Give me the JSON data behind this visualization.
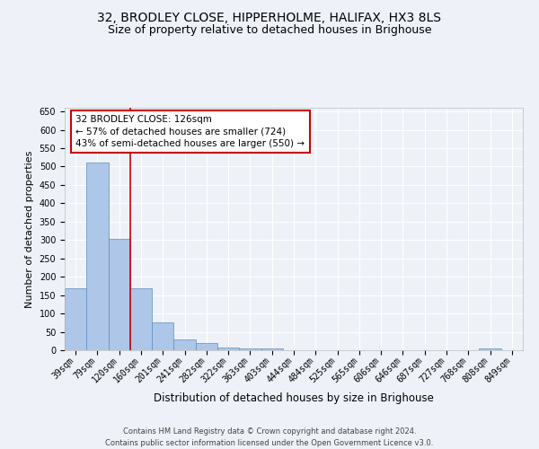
{
  "title1": "32, BRODLEY CLOSE, HIPPERHOLME, HALIFAX, HX3 8LS",
  "title2": "Size of property relative to detached houses in Brighouse",
  "xlabel": "Distribution of detached houses by size in Brighouse",
  "ylabel": "Number of detached properties",
  "categories": [
    "39sqm",
    "79sqm",
    "120sqm",
    "160sqm",
    "201sqm",
    "241sqm",
    "282sqm",
    "322sqm",
    "363sqm",
    "403sqm",
    "444sqm",
    "484sqm",
    "525sqm",
    "565sqm",
    "606sqm",
    "646sqm",
    "687sqm",
    "727sqm",
    "768sqm",
    "808sqm",
    "849sqm"
  ],
  "values": [
    168,
    510,
    303,
    168,
    75,
    30,
    20,
    7,
    5,
    5,
    0,
    0,
    0,
    0,
    0,
    0,
    0,
    0,
    0,
    5,
    0
  ],
  "bar_color": "#aec6e8",
  "bar_edge_color": "#5a8fc0",
  "vline_x_index": 2.5,
  "vline_color": "#cc0000",
  "annotation_text": "32 BRODLEY CLOSE: 126sqm\n← 57% of detached houses are smaller (724)\n43% of semi-detached houses are larger (550) →",
  "annotation_box_color": "#ffffff",
  "annotation_box_edge_color": "#cc0000",
  "ylim": [
    0,
    660
  ],
  "yticks": [
    0,
    50,
    100,
    150,
    200,
    250,
    300,
    350,
    400,
    450,
    500,
    550,
    600,
    650
  ],
  "footer1": "Contains HM Land Registry data © Crown copyright and database right 2024.",
  "footer2": "Contains public sector information licensed under the Open Government Licence v3.0.",
  "background_color": "#eef2f8",
  "grid_color": "#ffffff",
  "title_fontsize": 10,
  "subtitle_fontsize": 9,
  "tick_fontsize": 7,
  "ylabel_fontsize": 8,
  "xlabel_fontsize": 8.5,
  "footer_fontsize": 6,
  "annotation_fontsize": 7.5
}
